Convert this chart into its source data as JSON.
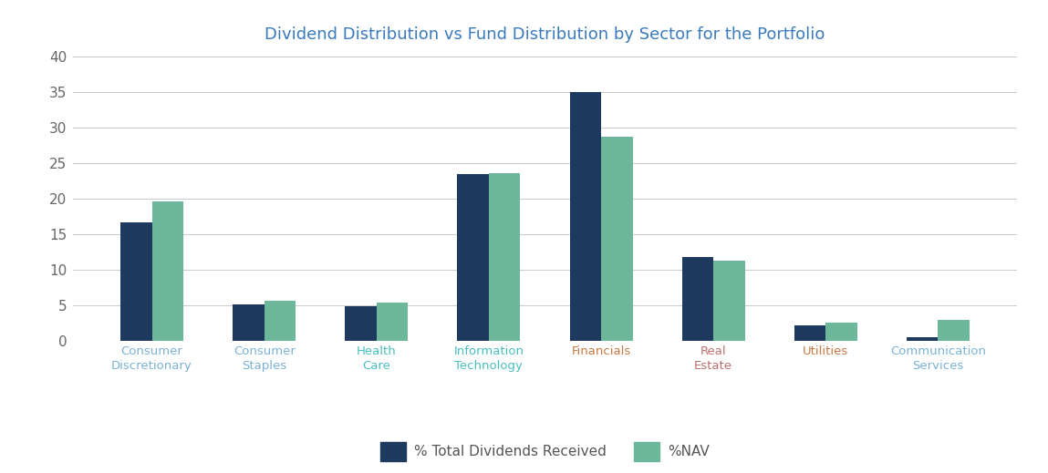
{
  "title": "Dividend Distribution vs Fund Distribution by Sector for the Portfolio",
  "title_color": "#3a7abf",
  "categories": [
    "Consumer\nDiscretionary",
    "Consumer\nStaples",
    "Health\nCare",
    "Information\nTechnology",
    "Financials",
    "Real\nEstate",
    "Utilities",
    "Communication\nServices"
  ],
  "tick_label_colors": [
    "#7ab3d4",
    "#7ab3d4",
    "#4bbfbf",
    "#4bbfbf",
    "#c87941",
    "#c07070",
    "#c87941",
    "#7ab3d4"
  ],
  "dividends": [
    16.7,
    5.1,
    4.8,
    23.5,
    35.0,
    11.8,
    2.1,
    0.5
  ],
  "nav": [
    19.6,
    5.6,
    5.4,
    23.6,
    28.7,
    11.2,
    2.5,
    2.9
  ],
  "bar_color_dividends": "#1e3a5f",
  "bar_color_nav": "#6db89a",
  "ylim": [
    0,
    40
  ],
  "yticks": [
    0,
    5,
    10,
    15,
    20,
    25,
    30,
    35,
    40
  ],
  "legend_label_dividends": "% Total Dividends Received",
  "legend_label_nav": "%NAV",
  "bar_width": 0.28,
  "background_color": "#ffffff",
  "grid_color": "#cccccc"
}
